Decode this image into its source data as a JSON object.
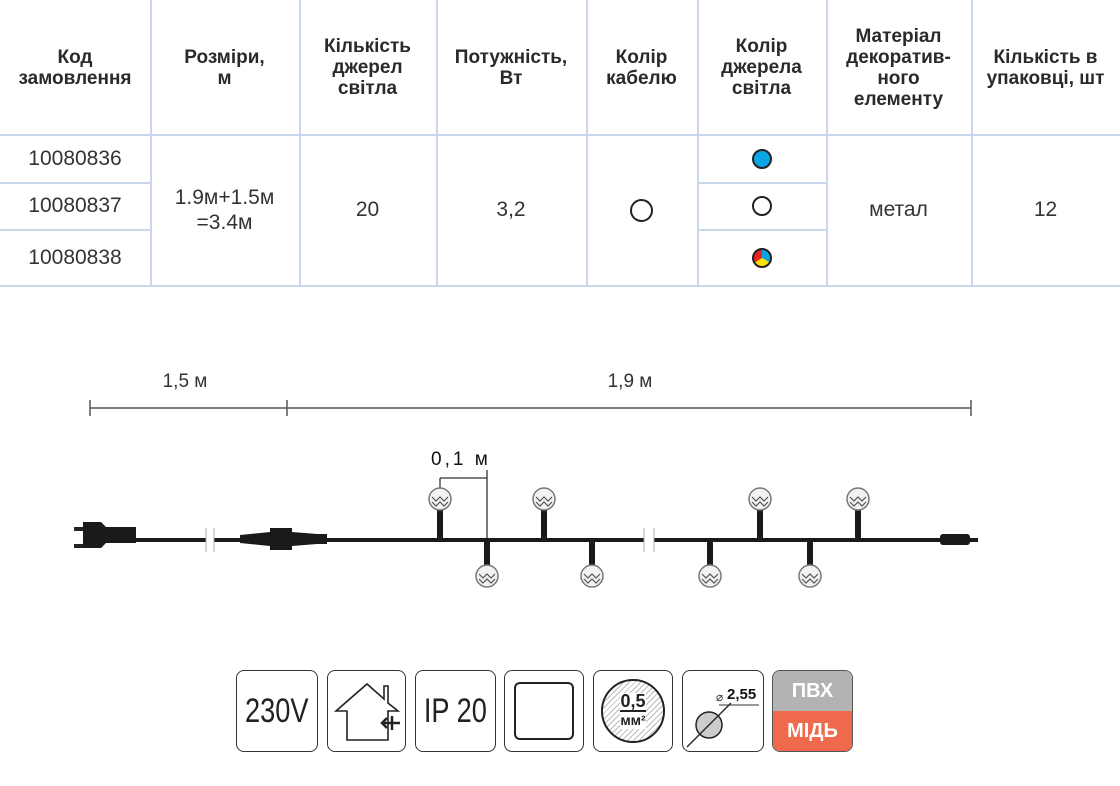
{
  "table": {
    "headers": [
      "Код замовлення",
      "Розміри, м",
      "Кількість джерел світла",
      "Потужність, Вт",
      "Колір кабелю",
      "Колір джерела світла",
      "Матеріал декоратив-ного елементу",
      "Кількість в упаковці, шт"
    ],
    "codes": [
      "10080836",
      "10080837",
      "10080838"
    ],
    "size": "1.9м+1.5м =3.4м",
    "lights": "20",
    "power": "3,2",
    "cable_color": "white",
    "light_colors": [
      "blue",
      "white",
      "multicolor"
    ],
    "material": "метал",
    "pack": "12"
  },
  "diagram": {
    "lead_length": "1,5 м",
    "lit_length": "1,9 м",
    "spacing": "0,1 м"
  },
  "icons": {
    "voltage": "230V",
    "indoor": "house-indoor-icon",
    "ip": "IP 20",
    "wire_section": "0,5",
    "wire_unit": "мм²",
    "diameter": "2,55",
    "insulation": "ПВХ",
    "conductor": "МІДЬ"
  },
  "colors": {
    "blue": "#0aa6e6",
    "red": "#e52521",
    "yellow": "#ffe100",
    "grid": "#c9d6ec",
    "pvc": "#b3b3b3",
    "copper": "#ef6a4c"
  }
}
